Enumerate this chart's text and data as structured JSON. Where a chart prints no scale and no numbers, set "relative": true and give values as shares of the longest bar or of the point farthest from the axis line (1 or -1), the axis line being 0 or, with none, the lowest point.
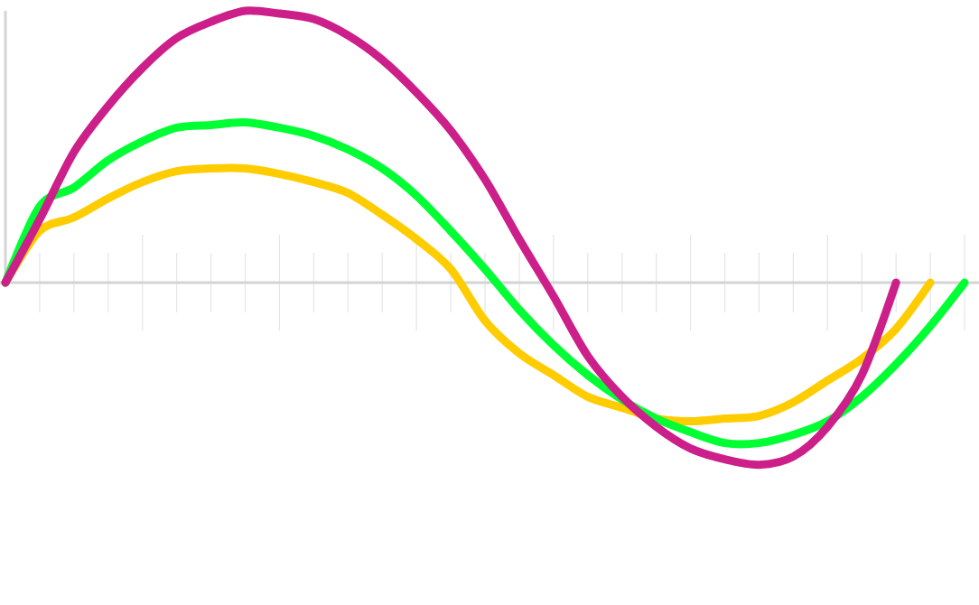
{
  "chart_data": {
    "type": "line",
    "relative": true,
    "marker": "none",
    "line_style": "solid",
    "categories": [
      null,
      null,
      null,
      null,
      null,
      null,
      null,
      null,
      null,
      null,
      null,
      null,
      null,
      null,
      null,
      null,
      null,
      null,
      null,
      null,
      null,
      null,
      null,
      null,
      null,
      null,
      null,
      null,
      null
    ],
    "series": [
      {
        "color": "#ffcc00",
        "values": [
          0,
          0.19,
          0.24,
          0.31,
          0.37,
          0.41,
          0.42,
          0.42,
          0.4,
          0.37,
          0.33,
          0.25,
          0.16,
          0.05,
          -0.14,
          -0.26,
          -0.34,
          -0.42,
          -0.46,
          -0.5,
          -0.51,
          -0.5,
          -0.49,
          -0.44,
          -0.36,
          -0.28,
          -0.17,
          0,
          null
        ]
      },
      {
        "color": "#00ff33",
        "values": [
          0,
          0.28,
          0.35,
          0.45,
          0.52,
          0.57,
          0.58,
          0.59,
          0.57,
          0.54,
          0.49,
          0.42,
          0.32,
          0.19,
          0.05,
          -0.1,
          -0.23,
          -0.34,
          -0.43,
          -0.5,
          -0.55,
          -0.59,
          -0.59,
          -0.56,
          -0.51,
          -0.42,
          -0.3,
          -0.16,
          0
        ]
      },
      {
        "color": "#cc1f8a",
        "values": [
          0,
          0.233,
          0.48,
          0.65,
          0.79,
          0.9,
          0.96,
          1.0,
          0.99,
          0.97,
          0.91,
          0.82,
          0.7,
          0.56,
          0.38,
          0.16,
          -0.05,
          -0.27,
          -0.42,
          -0.53,
          -0.61,
          -0.65,
          -0.67,
          -0.64,
          -0.53,
          -0.34,
          0,
          null,
          null
        ]
      }
    ]
  }
}
